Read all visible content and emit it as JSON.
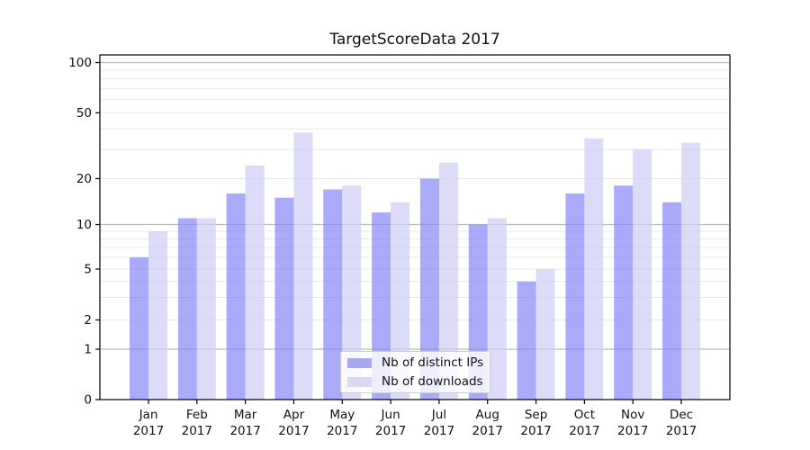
{
  "chart_data": {
    "type": "bar",
    "title": "TargetScoreData 2017",
    "categories": [
      "Jan",
      "Feb",
      "Mar",
      "Apr",
      "May",
      "Jun",
      "Jul",
      "Aug",
      "Sep",
      "Oct",
      "Nov",
      "Dec"
    ],
    "x_year_label": "2017",
    "series": [
      {
        "name": "Nb of distinct IPs",
        "color": "rgba(134,134,248,0.70)",
        "legend_swatch_color": "#a8a8f0",
        "values": [
          6,
          11,
          16,
          15,
          17,
          12,
          20,
          10,
          4,
          16,
          18,
          14
        ]
      },
      {
        "name": "Nb of downloads",
        "color": "rgba(205,205,246,0.70)",
        "legend_swatch_color": "#d8d8f4",
        "values": [
          9,
          11,
          24,
          38,
          18,
          14,
          25,
          11,
          5,
          35,
          30,
          33
        ]
      }
    ],
    "y_ticks": [
      0,
      1,
      2,
      5,
      10,
      20,
      50,
      100
    ],
    "y_major_gridlines": [
      1,
      10,
      100
    ],
    "y_minor_gridlines": [
      2,
      3,
      4,
      5,
      6,
      7,
      8,
      9,
      20,
      30,
      40,
      50,
      60,
      70,
      80,
      90
    ],
    "y_scale": "log-like with 0 baseline (ticks 0,1,2,5,10,20,50,100)",
    "ylim": [
      0,
      130
    ],
    "grid": true,
    "legend_position": "lower center",
    "colors": {
      "bar_distinct_ips": "#aaaaf8",
      "bar_downloads": "#dcdcf8",
      "grid_major": "#b9b9b9",
      "grid_minor": "#e8e8e8",
      "axis": "#000000",
      "text": "#111111"
    }
  }
}
